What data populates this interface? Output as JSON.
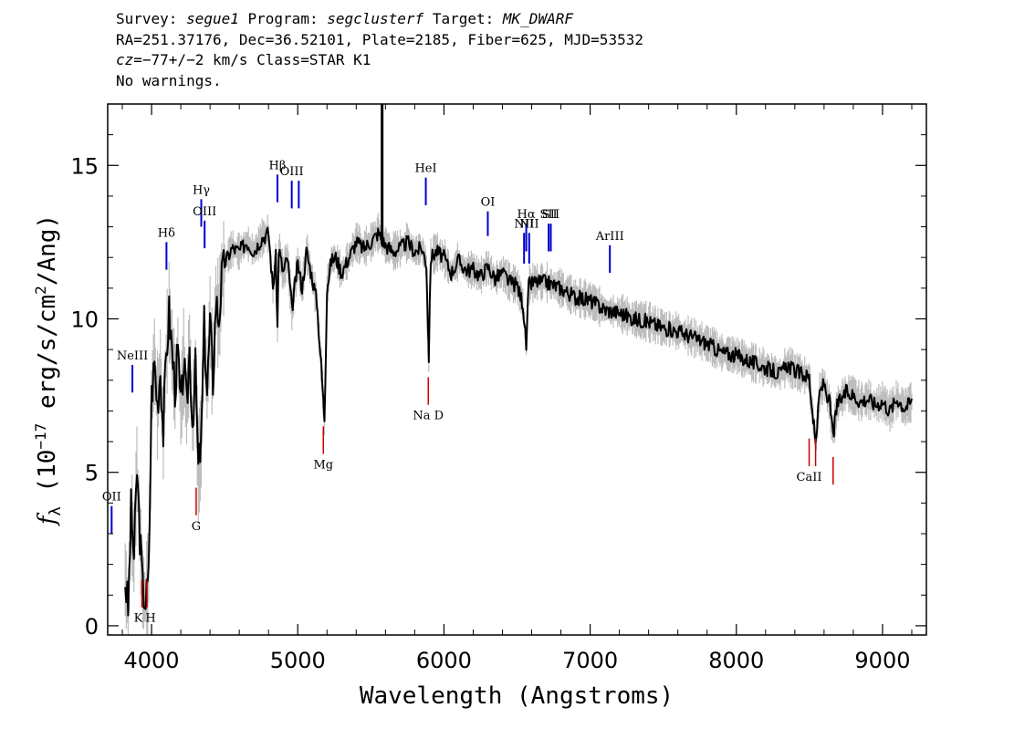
{
  "header": {
    "survey_label": "Survey:",
    "survey": "segue1",
    "program_label": "Program:",
    "program": "segclusterf",
    "target_label": "Target:",
    "target": "MK_DWARF",
    "line2": "RA=251.37176, Dec=36.52101, Plate=2185, Fiber=625, MJD=53532",
    "cz_label": "cz",
    "line3_rest": "=−77+/−2 km/s Class=STAR K1",
    "line4": "No warnings."
  },
  "chart_data": {
    "type": "line",
    "xlabel": "Wavelength (Angstroms)",
    "ylabel_prefix": "f",
    "ylabel_sub": "λ",
    "ylabel_main": "(10",
    "ylabel_exp": "−17",
    "ylabel_unit": "erg/s/cm",
    "ylabel_exp2": "2",
    "ylabel_end": "/Ang)",
    "xlim": [
      3700,
      9300
    ],
    "ylim": [
      -0.3,
      17.0
    ],
    "xticks": [
      4000,
      5000,
      6000,
      7000,
      8000,
      9000
    ],
    "yticks": [
      0,
      5,
      10,
      15
    ],
    "xtick_labels": [
      "4000",
      "5000",
      "6000",
      "7000",
      "8000",
      "9000"
    ],
    "ytick_labels": [
      "0",
      "5",
      "10",
      "15"
    ],
    "spectrum": {
      "name": "flux",
      "x": [
        3820,
        3840,
        3860,
        3880,
        3900,
        3920,
        3940,
        3960,
        3980,
        4000,
        4020,
        4040,
        4060,
        4080,
        4100,
        4120,
        4140,
        4160,
        4180,
        4200,
        4220,
        4240,
        4260,
        4280,
        4300,
        4320,
        4340,
        4360,
        4380,
        4400,
        4420,
        4440,
        4460,
        4480,
        4500,
        4550,
        4600,
        4650,
        4700,
        4750,
        4800,
        4830,
        4850,
        4861,
        4870,
        4900,
        4930,
        4960,
        5000,
        5030,
        5060,
        5100,
        5130,
        5160,
        5175,
        5183,
        5200,
        5230,
        5260,
        5300,
        5350,
        5400,
        5450,
        5500,
        5550,
        5600,
        5650,
        5700,
        5750,
        5800,
        5850,
        5880,
        5890,
        5896,
        5910,
        5950,
        6000,
        6050,
        6100,
        6150,
        6200,
        6250,
        6300,
        6350,
        6400,
        6450,
        6500,
        6540,
        6563,
        6580,
        6620,
        6700,
        6800,
        6900,
        7000,
        7100,
        7200,
        7300,
        7400,
        7500,
        7600,
        7700,
        7800,
        7900,
        8000,
        8100,
        8200,
        8300,
        8350,
        8400,
        8450,
        8498,
        8520,
        8542,
        8570,
        8600,
        8640,
        8662,
        8690,
        8750,
        8800,
        8850,
        8900,
        8950,
        9000,
        9050,
        9100,
        9150,
        9200
      ],
      "y": [
        1.5,
        0.5,
        3.8,
        2.2,
        5.1,
        3.0,
        1.2,
        0.8,
        1.5,
        7.5,
        8.6,
        7.2,
        8.4,
        6.3,
        8.8,
        10.2,
        9.0,
        7.8,
        8.9,
        7.0,
        8.6,
        7.1,
        9.0,
        6.6,
        8.4,
        5.1,
        6.0,
        9.8,
        7.6,
        9.9,
        8.0,
        10.6,
        10.0,
        11.3,
        11.8,
        12.3,
        12.2,
        12.5,
        12.2,
        12.6,
        12.8,
        11.0,
        12.0,
        9.7,
        12.3,
        11.5,
        12.0,
        10.3,
        11.8,
        11.0,
        12.2,
        11.3,
        10.6,
        8.5,
        7.3,
        6.8,
        11.0,
        11.9,
        12.0,
        11.5,
        12.0,
        12.5,
        12.3,
        12.5,
        12.8,
        12.4,
        12.2,
        12.3,
        12.5,
        12.2,
        12.3,
        11.8,
        9.8,
        8.8,
        12.0,
        12.2,
        12.0,
        11.5,
        11.9,
        11.6,
        11.6,
        11.4,
        11.7,
        11.3,
        11.5,
        11.2,
        11.1,
        10.5,
        9.1,
        11.1,
        11.2,
        11.2,
        11.0,
        10.7,
        10.6,
        10.3,
        10.2,
        10.0,
        9.9,
        9.7,
        9.6,
        9.4,
        9.2,
        8.9,
        8.8,
        8.6,
        8.4,
        8.2,
        8.5,
        8.3,
        8.2,
        8.1,
        7.0,
        5.9,
        7.6,
        7.9,
        7.2,
        6.2,
        7.2,
        7.6,
        7.5,
        7.3,
        7.4,
        7.2,
        7.3,
        7.0,
        7.4,
        7.1,
        7.3
      ]
    },
    "spike": {
      "x": 5577,
      "y_top": 17.0,
      "y_base": 12.4
    },
    "emission_lines": [
      {
        "label": "OII",
        "x": 3727,
        "y_low": 3.0,
        "y_high": 3.9
      },
      {
        "label": "NeIII",
        "x": 3869,
        "y_low": 7.6,
        "y_high": 8.5
      },
      {
        "label": "Hδ",
        "x": 4102,
        "y_low": 11.6,
        "y_high": 12.5
      },
      {
        "label": "Hγ",
        "x": 4340,
        "y_low": 13.0,
        "y_high": 13.9
      },
      {
        "label": "OIII",
        "x": 4363,
        "y_low": 12.3,
        "y_high": 13.2
      },
      {
        "label": "Hβ",
        "x": 4861,
        "y_low": 13.8,
        "y_high": 14.7
      },
      {
        "label": "OIII",
        "x": 4959,
        "y_low": 13.6,
        "y_high": 14.5
      },
      {
        "label": "",
        "x": 5007,
        "y_low": 13.6,
        "y_high": 14.5
      },
      {
        "label": "HeI",
        "x": 5876,
        "y_low": 13.7,
        "y_high": 14.6
      },
      {
        "label": "OI",
        "x": 6300,
        "y_low": 12.7,
        "y_high": 13.5
      },
      {
        "label": "NII",
        "x": 6548,
        "y_low": 11.8,
        "y_high": 12.8
      },
      {
        "label": "Hα",
        "x": 6563,
        "y_low": 12.2,
        "y_high": 13.1
      },
      {
        "label": "NII",
        "x": 6583,
        "y_low": 11.8,
        "y_high": 12.8
      },
      {
        "label": "SII",
        "x": 6716,
        "y_low": 12.2,
        "y_high": 13.1
      },
      {
        "label": "SII",
        "x": 6731,
        "y_low": 12.2,
        "y_high": 13.1
      },
      {
        "label": "ArIII",
        "x": 7135,
        "y_low": 11.5,
        "y_high": 12.4
      }
    ],
    "absorption_lines": [
      {
        "label": "K",
        "x": 3934,
        "y_low": 0.6,
        "y_high": 1.5
      },
      {
        "label": "H",
        "x": 3969,
        "y_low": 0.6,
        "y_high": 1.5
      },
      {
        "label": "G",
        "x": 4305,
        "y_low": 3.6,
        "y_high": 4.5
      },
      {
        "label": "Mg",
        "x": 5175,
        "y_low": 5.6,
        "y_high": 6.5
      },
      {
        "label": "Na D",
        "x": 5893,
        "y_low": 7.2,
        "y_high": 8.1
      },
      {
        "label": "CaII",
        "x": 8498,
        "y_low": 5.2,
        "y_high": 6.1
      },
      {
        "label": "",
        "x": 8542,
        "y_low": 5.2,
        "y_high": 6.1
      },
      {
        "label": "",
        "x": 8662,
        "y_low": 4.6,
        "y_high": 5.5
      }
    ],
    "colors": {
      "spectrum": "#000000",
      "error_band": "#bdbdbd",
      "emission": "#0000cc",
      "absorption": "#cc0000"
    }
  }
}
